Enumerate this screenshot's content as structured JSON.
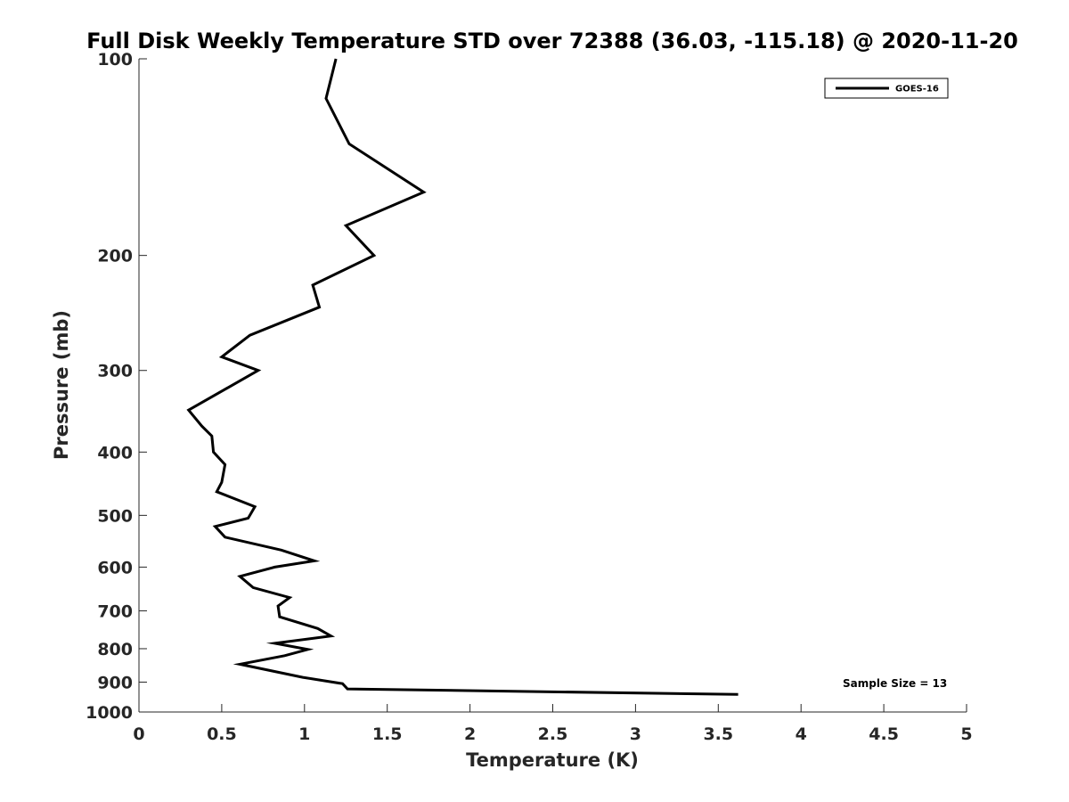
{
  "chart_data": {
    "type": "line",
    "title": "Full Disk Weekly Temperature STD over 72388 (36.03, -115.18) @ 2020-11-20",
    "xlabel": "Temperature (K)",
    "ylabel": "Pressure (mb)",
    "xlim": [
      0,
      5
    ],
    "ylim": [
      100,
      1000
    ],
    "y_scale": "log",
    "y_reversed": true,
    "x_ticks": [
      0,
      0.5,
      1,
      1.5,
      2,
      2.5,
      3,
      3.5,
      4,
      4.5,
      5
    ],
    "x_tick_labels": [
      "0",
      "0.5",
      "1",
      "1.5",
      "2",
      "2.5",
      "3",
      "3.5",
      "4",
      "4.5",
      "5"
    ],
    "y_ticks": [
      100,
      200,
      300,
      400,
      500,
      600,
      700,
      800,
      900,
      1000
    ],
    "y_tick_labels": [
      "100",
      "200",
      "300",
      "400",
      "500",
      "600",
      "700",
      "800",
      "900",
      "1000"
    ],
    "legend_position": "top-right",
    "series": [
      {
        "name": "GOES-16",
        "color": "#000000",
        "points": [
          {
            "t": 1.19,
            "p": 100
          },
          {
            "t": 1.13,
            "p": 115
          },
          {
            "t": 1.27,
            "p": 135
          },
          {
            "t": 1.72,
            "p": 160
          },
          {
            "t": 1.25,
            "p": 180
          },
          {
            "t": 1.42,
            "p": 200
          },
          {
            "t": 1.05,
            "p": 222
          },
          {
            "t": 1.09,
            "p": 240
          },
          {
            "t": 0.67,
            "p": 265
          },
          {
            "t": 0.5,
            "p": 286
          },
          {
            "t": 0.72,
            "p": 300
          },
          {
            "t": 0.3,
            "p": 345
          },
          {
            "t": 0.38,
            "p": 365
          },
          {
            "t": 0.44,
            "p": 378
          },
          {
            "t": 0.45,
            "p": 400
          },
          {
            "t": 0.52,
            "p": 418
          },
          {
            "t": 0.5,
            "p": 445
          },
          {
            "t": 0.47,
            "p": 460
          },
          {
            "t": 0.7,
            "p": 485
          },
          {
            "t": 0.66,
            "p": 505
          },
          {
            "t": 0.46,
            "p": 520
          },
          {
            "t": 0.52,
            "p": 540
          },
          {
            "t": 0.86,
            "p": 565
          },
          {
            "t": 1.06,
            "p": 587
          },
          {
            "t": 0.82,
            "p": 600
          },
          {
            "t": 0.61,
            "p": 620
          },
          {
            "t": 0.69,
            "p": 645
          },
          {
            "t": 0.91,
            "p": 668
          },
          {
            "t": 0.84,
            "p": 688
          },
          {
            "t": 0.85,
            "p": 715
          },
          {
            "t": 1.08,
            "p": 745
          },
          {
            "t": 1.16,
            "p": 765
          },
          {
            "t": 0.82,
            "p": 785
          },
          {
            "t": 1.02,
            "p": 802
          },
          {
            "t": 0.88,
            "p": 820
          },
          {
            "t": 0.61,
            "p": 845
          },
          {
            "t": 0.99,
            "p": 885
          },
          {
            "t": 1.23,
            "p": 905
          },
          {
            "t": 1.26,
            "p": 922
          },
          {
            "t": 3.62,
            "p": 940
          }
        ]
      }
    ],
    "annotations": [
      {
        "text": "Sample Size = 13"
      }
    ]
  }
}
